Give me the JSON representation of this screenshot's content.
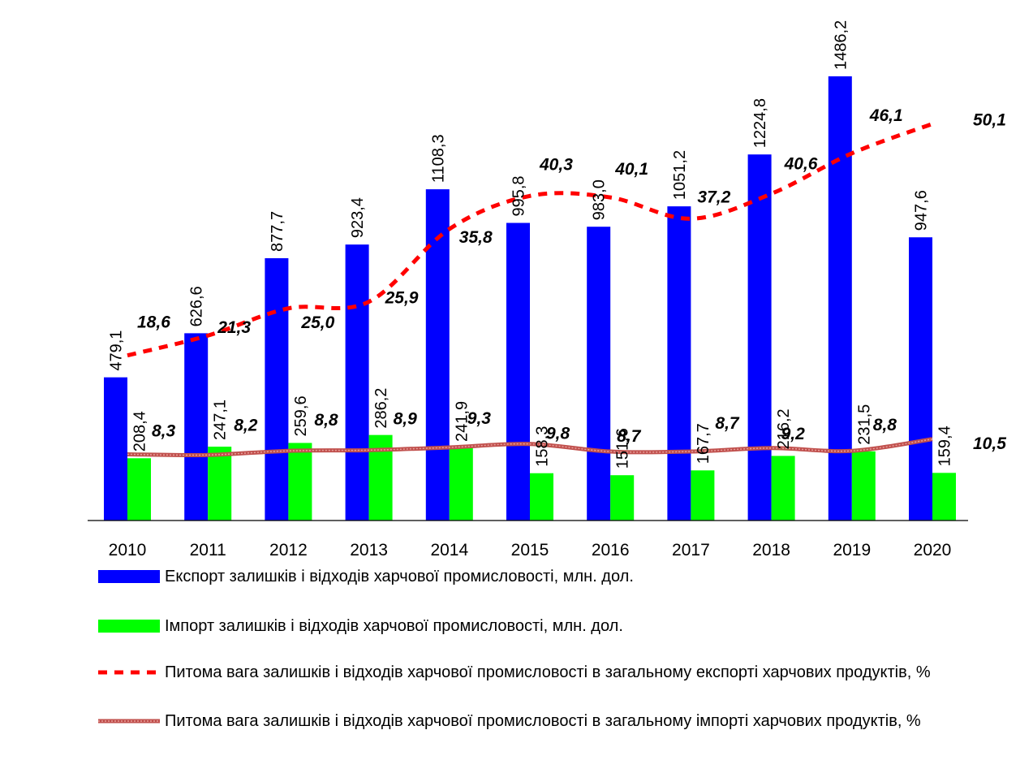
{
  "chart_data": {
    "type": "bar",
    "categories": [
      "2010",
      "2011",
      "2012",
      "2013",
      "2014",
      "2015",
      "2016",
      "2017",
      "2018",
      "2019",
      "2020"
    ],
    "series": [
      {
        "name": "Експорт залишків і відходів харчової промисловості, млн. дол.",
        "type": "bar",
        "color": "#0000FF",
        "values": [
          479.1,
          626.6,
          877.7,
          923.4,
          1108.3,
          995.8,
          983.0,
          1051.2,
          1224.8,
          1486.2,
          947.6
        ],
        "labels": [
          "479,1",
          "626,6",
          "877,7",
          "923,4",
          "1108,3",
          "995,8",
          "983,0",
          "1051,2",
          "1224,8",
          "1486,2",
          "947,6"
        ]
      },
      {
        "name": "Імпорт залишків і відходів харчової промисловості, млн. дол.",
        "type": "bar",
        "color": "#00FF00",
        "values": [
          208.4,
          247.1,
          259.6,
          286.2,
          241.9,
          158.3,
          151.6,
          167.7,
          216.2,
          231.5,
          159.4
        ],
        "labels": [
          "208,4",
          "247,1",
          "259,6",
          "286,2",
          "241,9",
          "158,3",
          "151,6",
          "167,7",
          "216,2",
          "231,5",
          "159,4"
        ]
      },
      {
        "name": "Питома вага залишків і відходів харчової промисловості в загальному експорті харчових продуктів, %",
        "type": "line",
        "style": "dashed",
        "color": "#FF0000",
        "values": [
          18.6,
          21.3,
          25.0,
          25.9,
          35.8,
          40.3,
          40.1,
          37.2,
          40.6,
          46.1,
          50.1
        ],
        "labels": [
          "18,6",
          "21,3",
          "25,0",
          "25,9",
          "35,8",
          "40,3",
          "40,1",
          "37,2",
          "40,6",
          "46,1",
          "50,1"
        ]
      },
      {
        "name": "Питома вага залишків і відходів харчової промисловості в загальному імпорті харчових продуктів, %",
        "type": "line",
        "style": "solid",
        "color": "#C0504D",
        "values": [
          8.3,
          8.2,
          8.8,
          8.9,
          9.3,
          9.8,
          8.7,
          8.7,
          9.2,
          8.8,
          10.5
        ],
        "labels": [
          "8,3",
          "8,2",
          "8,8",
          "8,9",
          "9,3",
          "9,8",
          "8,7",
          "8,7",
          "9,2",
          "8,8",
          "10,5"
        ]
      }
    ],
    "grid": false,
    "legend_position": "bottom",
    "title": "",
    "xlabel": "",
    "ylabel": ""
  }
}
